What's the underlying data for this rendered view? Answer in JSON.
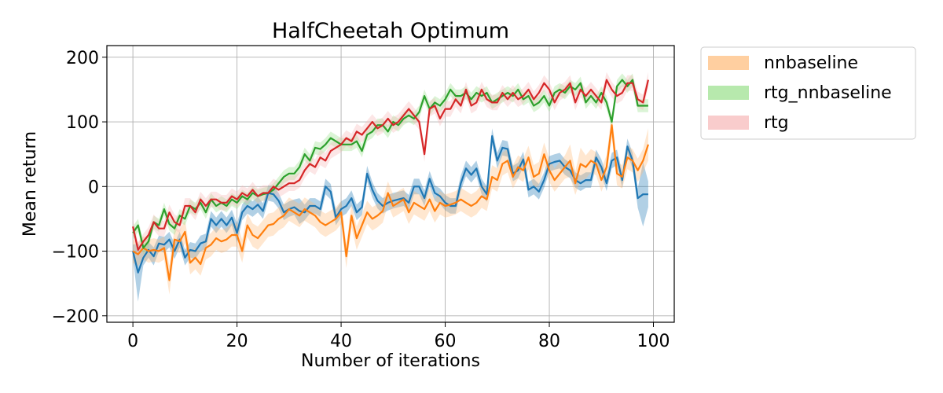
{
  "chart_data": {
    "type": "line",
    "title": "HalfCheetah Optimum",
    "xlabel": "Number of iterations",
    "ylabel": "Mean return",
    "xlim": [
      -5,
      104
    ],
    "ylim": [
      -210,
      218
    ],
    "xticks": [
      0,
      20,
      40,
      60,
      80,
      100
    ],
    "yticks": [
      -200,
      -100,
      0,
      100,
      200
    ],
    "grid": true,
    "legend_position": "outside-right",
    "legend_entries": [
      "nnbaseline",
      "rtg_nnbaseline",
      "rtg"
    ],
    "series": [
      {
        "color": "#1f77b4",
        "band_color": "#1f77b4",
        "mean": [
          -100,
          -133,
          -110,
          -98,
          -108,
          -88,
          -90,
          -82,
          -100,
          -82,
          -110,
          -98,
          -100,
          -88,
          -85,
          -50,
          -60,
          -50,
          -60,
          -48,
          -72,
          -40,
          -30,
          -35,
          -28,
          -38,
          -10,
          -12,
          -22,
          -40,
          -35,
          -32,
          -38,
          -40,
          -30,
          -30,
          -35,
          0,
          -8,
          -48,
          -35,
          -30,
          -18,
          -40,
          -32,
          20,
          -5,
          -22,
          -30,
          -25,
          -22,
          -20,
          -18,
          -25,
          0,
          0,
          -18,
          12,
          -10,
          -15,
          -25,
          -30,
          -30,
          5,
          28,
          18,
          28,
          0,
          -12,
          78,
          40,
          60,
          58,
          20,
          25,
          42,
          -5,
          0,
          -8,
          10,
          35,
          38,
          40,
          30,
          25,
          10,
          5,
          10,
          10,
          45,
          30,
          5,
          40,
          45,
          10,
          62,
          40,
          -18,
          -12,
          -12
        ],
        "spread": [
          10,
          45,
          12,
          12,
          14,
          12,
          12,
          12,
          12,
          12,
          12,
          12,
          12,
          12,
          12,
          12,
          12,
          12,
          12,
          12,
          15,
          12,
          12,
          12,
          12,
          12,
          12,
          12,
          12,
          12,
          12,
          12,
          20,
          12,
          12,
          12,
          12,
          12,
          12,
          12,
          12,
          12,
          12,
          12,
          12,
          12,
          12,
          12,
          12,
          12,
          12,
          12,
          12,
          12,
          12,
          12,
          12,
          12,
          12,
          12,
          12,
          12,
          12,
          12,
          12,
          12,
          12,
          12,
          12,
          12,
          12,
          12,
          12,
          12,
          12,
          12,
          12,
          12,
          12,
          12,
          12,
          12,
          12,
          12,
          12,
          12,
          12,
          12,
          12,
          12,
          12,
          12,
          12,
          12,
          12,
          12,
          12,
          15,
          50,
          20
        ]
      },
      {
        "name": "nnbaseline",
        "color": "#ff7f0e",
        "band_color": "#ffbb78",
        "mean": [
          -100,
          -105,
          -95,
          -100,
          -98,
          -100,
          -95,
          -145,
          -82,
          -85,
          -70,
          -118,
          -110,
          -120,
          -95,
          -90,
          -80,
          -85,
          -82,
          -75,
          -75,
          -100,
          -60,
          -75,
          -80,
          -70,
          -60,
          -58,
          -50,
          -45,
          -35,
          -40,
          -45,
          -35,
          -40,
          -45,
          -55,
          -60,
          -55,
          -50,
          -40,
          -108,
          -45,
          -80,
          -60,
          -40,
          -50,
          -45,
          -38,
          -10,
          -30,
          -25,
          -20,
          -40,
          -25,
          -30,
          -35,
          -20,
          -38,
          -25,
          -30,
          -28,
          -25,
          -20,
          -25,
          -30,
          -25,
          -15,
          -20,
          15,
          10,
          35,
          40,
          15,
          30,
          25,
          45,
          15,
          20,
          50,
          25,
          10,
          20,
          30,
          40,
          5,
          35,
          30,
          40,
          35,
          10,
          30,
          95,
          20,
          15,
          45,
          40,
          25,
          40,
          65
        ],
        "spread": [
          18,
          18,
          18,
          18,
          18,
          18,
          18,
          22,
          18,
          18,
          18,
          18,
          18,
          18,
          18,
          18,
          18,
          18,
          18,
          18,
          18,
          18,
          18,
          18,
          18,
          18,
          18,
          18,
          18,
          18,
          18,
          18,
          18,
          18,
          18,
          18,
          18,
          18,
          18,
          18,
          18,
          18,
          18,
          18,
          18,
          18,
          18,
          18,
          18,
          18,
          18,
          18,
          18,
          18,
          18,
          18,
          18,
          18,
          18,
          18,
          18,
          18,
          18,
          18,
          18,
          18,
          18,
          18,
          18,
          18,
          18,
          18,
          18,
          18,
          18,
          18,
          18,
          18,
          18,
          18,
          18,
          18,
          18,
          18,
          25,
          18,
          25,
          18,
          18,
          18,
          18,
          18,
          18,
          18,
          18,
          18,
          18,
          18,
          18,
          25
        ]
      },
      {
        "name": "rtg_nnbaseline",
        "color": "#2ca02c",
        "band_color": "#98df8a",
        "mean": [
          -72,
          -60,
          -95,
          -85,
          -55,
          -60,
          -35,
          -58,
          -65,
          -45,
          -50,
          -30,
          -35,
          -25,
          -40,
          -20,
          -30,
          -25,
          -30,
          -20,
          -25,
          -15,
          -20,
          -10,
          -15,
          -12,
          -10,
          -5,
          5,
          15,
          20,
          20,
          30,
          50,
          40,
          60,
          58,
          65,
          75,
          70,
          65,
          65,
          65,
          70,
          55,
          80,
          85,
          95,
          95,
          85,
          100,
          95,
          105,
          110,
          105,
          115,
          140,
          120,
          130,
          125,
          135,
          150,
          140,
          140,
          145,
          135,
          145,
          140,
          145,
          130,
          135,
          140,
          145,
          140,
          150,
          135,
          140,
          125,
          130,
          140,
          125,
          145,
          150,
          145,
          155,
          150,
          160,
          130,
          140,
          130,
          145,
          130,
          100,
          155,
          165,
          155,
          165,
          125,
          125,
          125
        ],
        "spread": [
          10,
          10,
          10,
          10,
          10,
          10,
          10,
          10,
          10,
          10,
          10,
          10,
          10,
          10,
          10,
          10,
          10,
          10,
          10,
          10,
          10,
          10,
          10,
          10,
          10,
          10,
          10,
          10,
          10,
          10,
          10,
          10,
          10,
          10,
          10,
          10,
          10,
          10,
          10,
          10,
          10,
          10,
          10,
          10,
          10,
          10,
          10,
          10,
          10,
          10,
          10,
          10,
          10,
          10,
          10,
          10,
          10,
          10,
          10,
          10,
          10,
          10,
          10,
          10,
          10,
          10,
          10,
          10,
          10,
          10,
          10,
          10,
          10,
          10,
          10,
          10,
          10,
          10,
          10,
          10,
          10,
          10,
          10,
          10,
          10,
          10,
          10,
          10,
          10,
          10,
          10,
          10,
          10,
          10,
          10,
          10,
          10,
          10,
          10,
          10
        ]
      },
      {
        "name": "rtg",
        "color": "#d62728",
        "band_color": "#f7b6b6",
        "mean": [
          -62,
          -98,
          -85,
          -75,
          -55,
          -65,
          -65,
          -40,
          -55,
          -60,
          -30,
          -30,
          -40,
          -20,
          -30,
          -20,
          -20,
          -25,
          -25,
          -15,
          -20,
          -10,
          -15,
          -5,
          -15,
          -10,
          -10,
          0,
          -5,
          0,
          5,
          5,
          10,
          25,
          35,
          30,
          45,
          40,
          55,
          60,
          65,
          75,
          70,
          85,
          80,
          90,
          100,
          90,
          95,
          105,
          95,
          100,
          110,
          120,
          110,
          100,
          50,
          120,
          125,
          105,
          120,
          120,
          135,
          125,
          150,
          125,
          130,
          150,
          135,
          130,
          130,
          145,
          135,
          145,
          135,
          140,
          150,
          135,
          145,
          160,
          150,
          130,
          145,
          150,
          160,
          130,
          150,
          140,
          150,
          140,
          130,
          165,
          150,
          140,
          145,
          160,
          160,
          135,
          130,
          165
        ],
        "spread": [
          12,
          12,
          12,
          12,
          12,
          12,
          12,
          12,
          12,
          12,
          12,
          12,
          12,
          12,
          12,
          12,
          12,
          12,
          12,
          12,
          12,
          12,
          12,
          12,
          12,
          12,
          12,
          12,
          12,
          12,
          12,
          12,
          12,
          12,
          12,
          12,
          12,
          12,
          12,
          12,
          12,
          12,
          12,
          12,
          12,
          12,
          12,
          12,
          12,
          12,
          12,
          12,
          12,
          12,
          12,
          12,
          12,
          12,
          12,
          12,
          12,
          12,
          12,
          12,
          12,
          12,
          12,
          12,
          12,
          12,
          12,
          12,
          12,
          12,
          12,
          12,
          12,
          12,
          12,
          12,
          12,
          12,
          12,
          12,
          12,
          12,
          12,
          12,
          12,
          12,
          12,
          12,
          12,
          12,
          12,
          12,
          12,
          12,
          12,
          12
        ]
      }
    ]
  }
}
